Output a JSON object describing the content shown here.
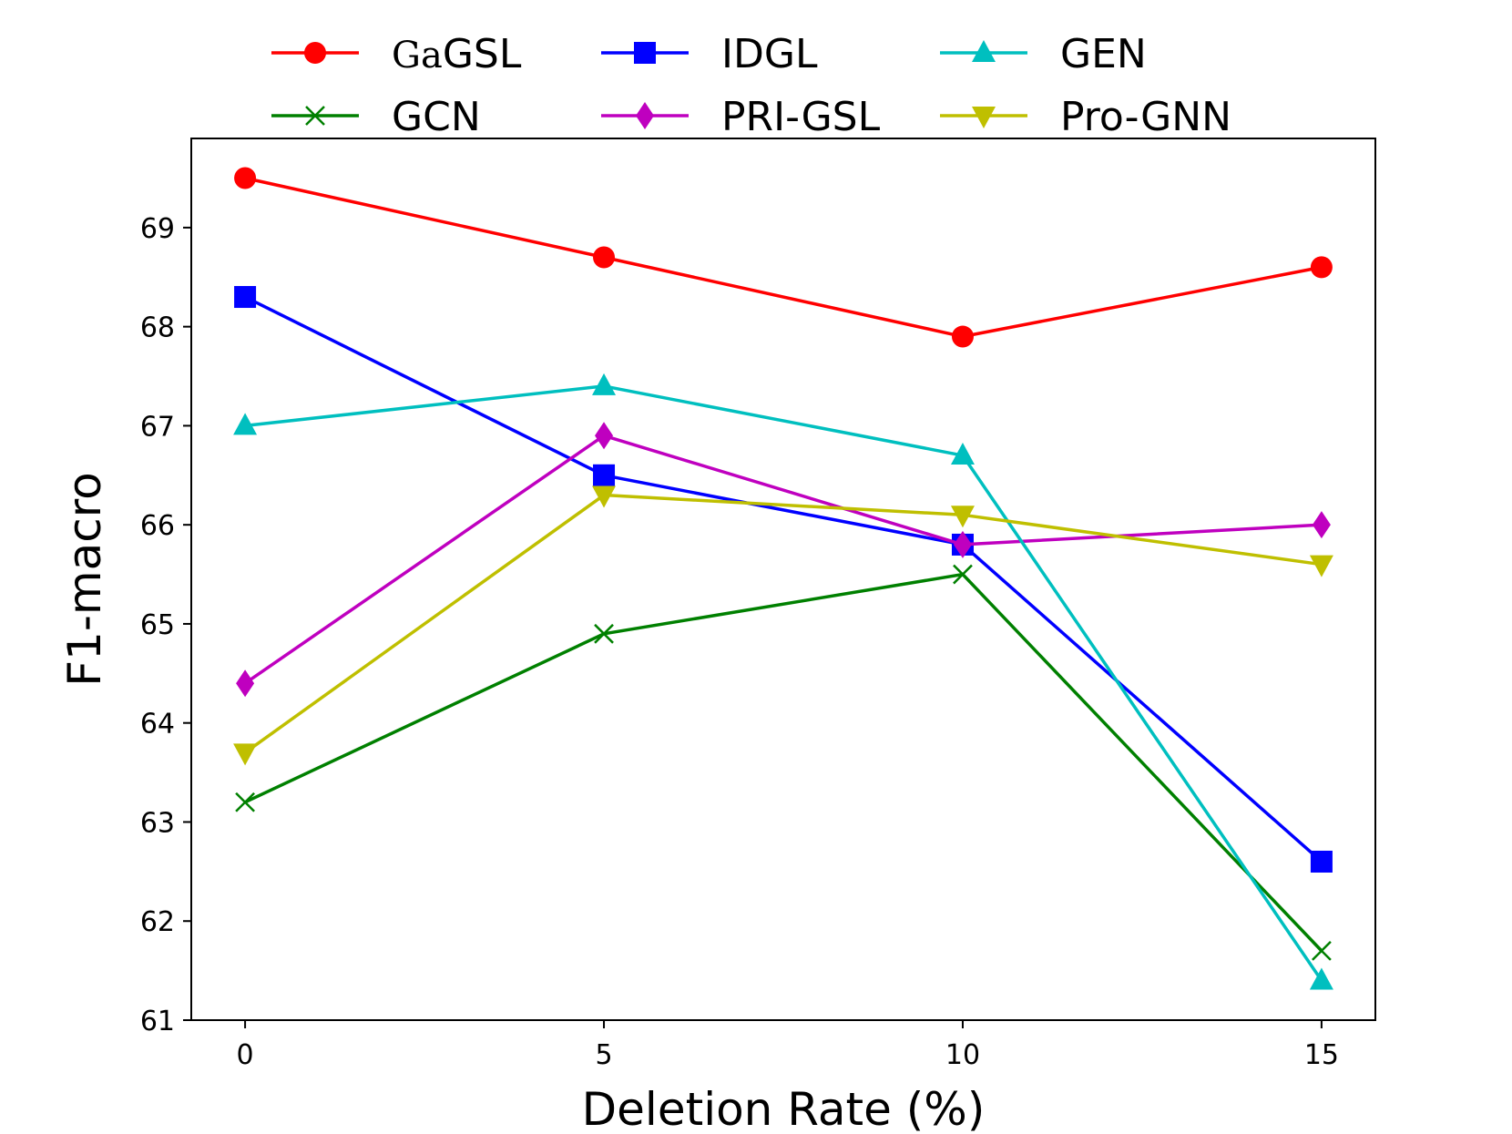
{
  "chart_data": {
    "type": "line",
    "title": "",
    "xlabel": "Deletion Rate (%)",
    "ylabel": "F1-macro",
    "x": [
      0,
      5,
      10,
      15
    ],
    "xticks": [
      "0",
      "5",
      "10",
      "15"
    ],
    "xlim": [
      -0.75,
      15.75
    ],
    "yticks": [
      "61",
      "62",
      "63",
      "64",
      "65",
      "66",
      "67",
      "68",
      "69"
    ],
    "ylim": [
      61,
      69.9
    ],
    "grid": false,
    "legend_position": "top (above plot, 3 columns)",
    "series": [
      {
        "name": "GaGSL",
        "name_prefix": "Ga",
        "name_suffix": "GSL",
        "color": "#ff0000",
        "marker": "circle",
        "values": [
          69.5,
          68.7,
          67.9,
          68.6
        ]
      },
      {
        "name": "GCN",
        "color": "#008000",
        "marker": "x",
        "values": [
          63.2,
          64.9,
          65.5,
          61.7
        ]
      },
      {
        "name": "IDGL",
        "color": "#0000ff",
        "marker": "square",
        "values": [
          68.3,
          66.5,
          65.8,
          62.6
        ]
      },
      {
        "name": "PRI-GSL",
        "color": "#bf00bf",
        "marker": "diamond",
        "values": [
          64.4,
          66.9,
          65.8,
          66.0
        ]
      },
      {
        "name": "GEN",
        "color": "#00bfbf",
        "marker": "triangle-up",
        "values": [
          67.0,
          67.4,
          66.7,
          61.4
        ]
      },
      {
        "name": "Pro-GNN",
        "color": "#bfbf00",
        "marker": "triangle-down",
        "values": [
          63.7,
          66.3,
          66.1,
          65.6
        ]
      }
    ]
  }
}
